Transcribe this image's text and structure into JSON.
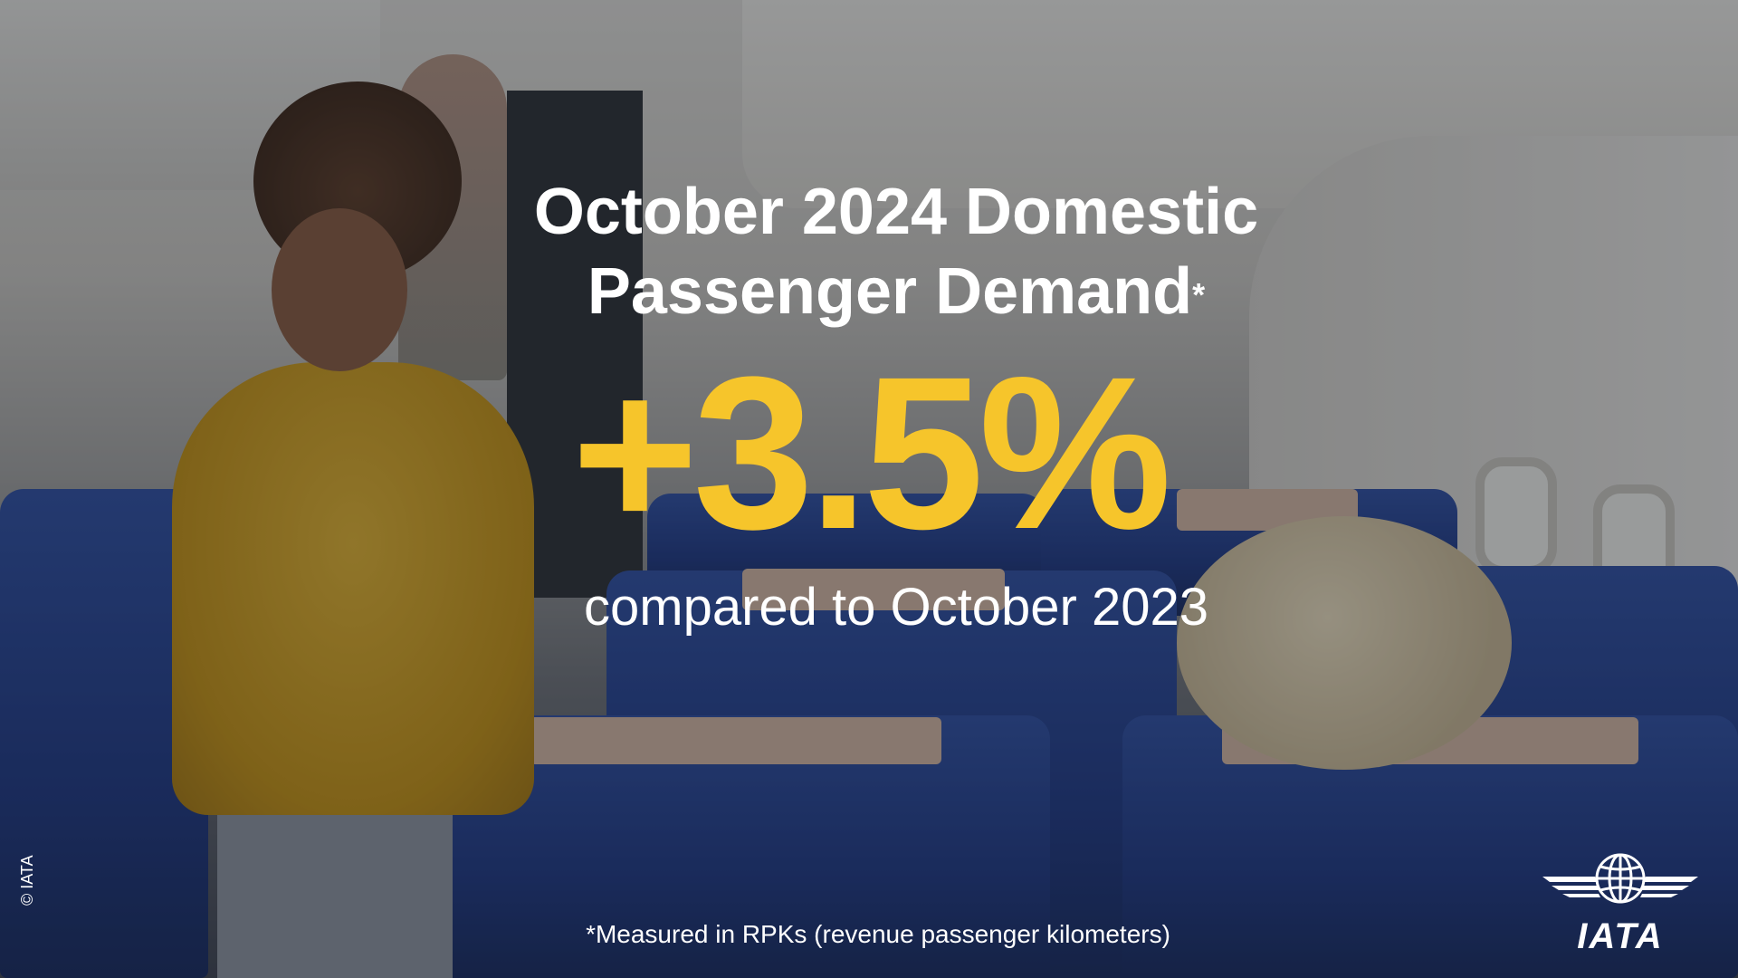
{
  "headline": {
    "line1": "October 2024 Domestic",
    "line2": "Passenger Demand",
    "asterisk": "*"
  },
  "metric": {
    "value": "+3.5%",
    "color": "#f6c52b"
  },
  "comparison": "compared to October 2023",
  "footnote": "*Measured in RPKs (revenue passenger kilometers)",
  "copyright": "© IATA",
  "logo": {
    "icon": "globe-wings-icon",
    "text": "IATA"
  },
  "colors": {
    "text": "#ffffff",
    "accent": "#f6c52b"
  }
}
